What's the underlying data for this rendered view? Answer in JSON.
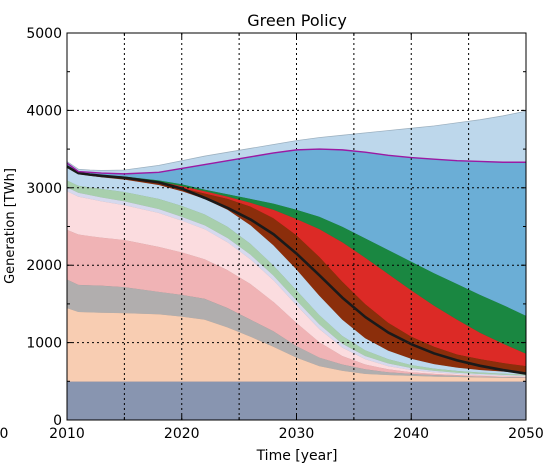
{
  "chart_data": {
    "type": "area",
    "title": "Green Policy",
    "xlabel": "Time [year]",
    "ylabel": "Generation [TWh]",
    "xlim": [
      2010,
      2050
    ],
    "ylim": [
      0,
      5000
    ],
    "x_ticks": [
      2010,
      2020,
      2030,
      2040,
      2050
    ],
    "y_ticks": [
      0,
      1000,
      2000,
      3000,
      4000,
      5000
    ],
    "x_tick_labels": [
      "2010",
      "2020",
      "2030",
      "2040",
      "2050"
    ],
    "y_tick_labels": [
      "0",
      "1000",
      "2000",
      "3000",
      "4000",
      "5000"
    ],
    "stray_labels": [
      "0"
    ],
    "grid": true,
    "legend": "none",
    "x": [
      2010,
      2011,
      2012,
      2013,
      2015,
      2018,
      2020,
      2022,
      2024,
      2026,
      2028,
      2030,
      2032,
      2034,
      2036,
      2038,
      2040,
      2042,
      2044,
      2046,
      2048,
      2050
    ],
    "series": [
      {
        "color": "#8895b0",
        "cumulative": [
          500,
          500,
          500,
          500,
          500,
          500,
          500,
          500,
          500,
          500,
          500,
          500,
          500,
          500,
          500,
          500,
          500,
          500,
          500,
          500,
          500,
          500
        ]
      },
      {
        "color": "#f8cdb2",
        "cumulative": [
          1450,
          1400,
          1395,
          1390,
          1385,
          1370,
          1340,
          1300,
          1200,
          1080,
          950,
          810,
          700,
          640,
          600,
          585,
          575,
          565,
          560,
          555,
          550,
          548
        ]
      },
      {
        "color": "#b1aeae",
        "cumulative": [
          1820,
          1750,
          1745,
          1740,
          1720,
          1660,
          1620,
          1570,
          1450,
          1300,
          1150,
          960,
          810,
          720,
          660,
          620,
          600,
          585,
          575,
          565,
          560,
          555
        ]
      },
      {
        "color": "#f0b3b5",
        "cumulative": [
          2460,
          2400,
          2380,
          2360,
          2330,
          2240,
          2170,
          2080,
          1940,
          1760,
          1530,
          1260,
          1010,
          830,
          720,
          660,
          620,
          600,
          585,
          575,
          565,
          560
        ]
      },
      {
        "color": "#fbdcdf",
        "cumulative": [
          2960,
          2890,
          2860,
          2830,
          2780,
          2680,
          2580,
          2470,
          2300,
          2080,
          1810,
          1490,
          1180,
          940,
          790,
          700,
          650,
          620,
          600,
          585,
          575,
          568
        ]
      },
      {
        "color": "#d6d9ee",
        "cumulative": [
          3010,
          2940,
          2910,
          2880,
          2830,
          2730,
          2630,
          2520,
          2355,
          2140,
          1870,
          1550,
          1240,
          990,
          830,
          735,
          675,
          640,
          615,
          600,
          588,
          578
        ]
      },
      {
        "color": "#a8cfad",
        "cumulative": [
          3100,
          3030,
          3010,
          2990,
          2950,
          2860,
          2770,
          2660,
          2500,
          2280,
          2000,
          1680,
          1360,
          1090,
          905,
          790,
          715,
          668,
          638,
          618,
          603,
          592
        ]
      },
      {
        "color": "#bed9ee",
        "cumulative": [
          3270,
          3180,
          3160,
          3140,
          3110,
          3040,
          2960,
          2860,
          2720,
          2520,
          2260,
          1950,
          1610,
          1300,
          1060,
          900,
          795,
          725,
          680,
          650,
          630,
          615
        ]
      },
      {
        "color": "#8b2e0b",
        "cumulative": [
          3275,
          3190,
          3170,
          3155,
          3130,
          3070,
          3000,
          2930,
          2860,
          2760,
          2610,
          2390,
          2110,
          1790,
          1500,
          1260,
          1080,
          950,
          850,
          790,
          740,
          700
        ]
      },
      {
        "color": "#dc2a26",
        "cumulative": [
          3285,
          3195,
          3175,
          3160,
          3140,
          3085,
          3025,
          2960,
          2890,
          2810,
          2720,
          2600,
          2470,
          2300,
          2100,
          1890,
          1680,
          1480,
          1300,
          1130,
          990,
          860
        ]
      },
      {
        "color": "#1a8741",
        "cumulative": [
          3300,
          3200,
          3180,
          3170,
          3150,
          3100,
          3050,
          2980,
          2920,
          2860,
          2800,
          2720,
          2630,
          2500,
          2350,
          2200,
          2050,
          1900,
          1760,
          1620,
          1490,
          1350
        ]
      },
      {
        "color": "#6baed6",
        "cumulative": [
          3320,
          3210,
          3200,
          3190,
          3180,
          3200,
          3250,
          3300,
          3350,
          3400,
          3450,
          3490,
          3500,
          3490,
          3460,
          3420,
          3390,
          3370,
          3350,
          3340,
          3330,
          3330
        ]
      },
      {
        "color": "#bdd7eb",
        "cumulative": [
          3340,
          3240,
          3230,
          3225,
          3230,
          3290,
          3350,
          3410,
          3460,
          3510,
          3560,
          3610,
          3650,
          3680,
          3710,
          3740,
          3770,
          3800,
          3840,
          3880,
          3930,
          3990
        ]
      }
    ],
    "lines": [
      {
        "color": "#1a1a1a",
        "values": [
          3275,
          3190,
          3170,
          3155,
          3130,
          3070,
          2990,
          2870,
          2740,
          2590,
          2400,
          2150,
          1870,
          1580,
          1330,
          1130,
          980,
          860,
          770,
          700,
          645,
          600
        ]
      },
      {
        "color": "#9b1aa3",
        "values": [
          3320,
          3210,
          3200,
          3190,
          3180,
          3200,
          3250,
          3300,
          3350,
          3400,
          3450,
          3490,
          3500,
          3490,
          3460,
          3420,
          3390,
          3370,
          3350,
          3340,
          3330,
          3330
        ]
      }
    ]
  }
}
